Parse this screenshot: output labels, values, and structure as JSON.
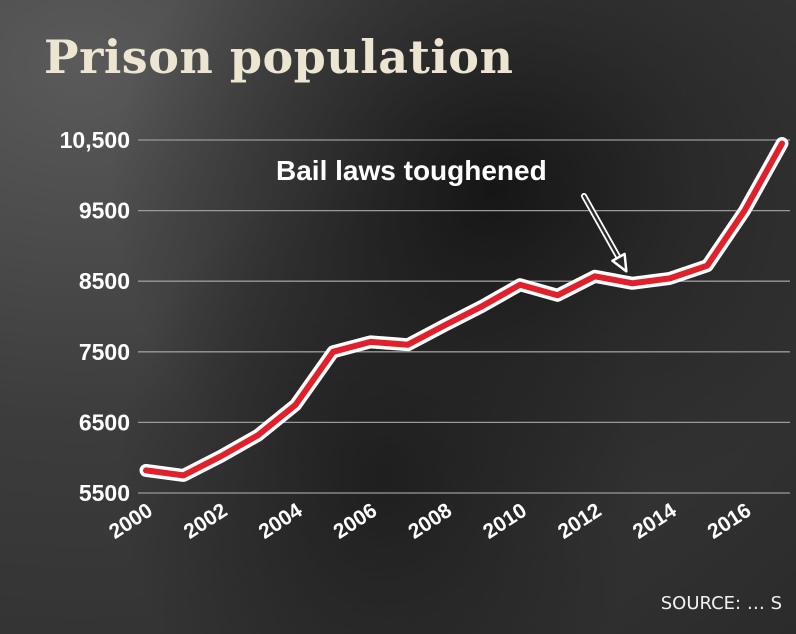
{
  "chart_data": {
    "type": "line",
    "title": "Prison population",
    "x": [
      2000,
      2001,
      2002,
      2003,
      2004,
      2005,
      2006,
      2007,
      2008,
      2009,
      2010,
      2011,
      2012,
      2013,
      2014,
      2015,
      2016,
      2017
    ],
    "series": [
      {
        "values": [
          5820,
          5750,
          6020,
          6320,
          6750,
          7500,
          7640,
          7600,
          7880,
          8150,
          8450,
          8300,
          8570,
          8470,
          8540,
          8720,
          9500,
          10450
        ]
      }
    ],
    "x_tick_labels": [
      "2000",
      "2002",
      "2004",
      "2006",
      "2008",
      "2010",
      "2012",
      "2014",
      "2016"
    ],
    "y_tick_labels": [
      "5500",
      "6500",
      "7500",
      "8500",
      "9500",
      "10,500"
    ],
    "y_ticks": [
      5500,
      6500,
      7500,
      8500,
      9500,
      10500
    ],
    "ylim": [
      5500,
      10500
    ],
    "xlim": [
      2000,
      2017
    ],
    "grid": true,
    "line_color": "#e0202a",
    "annotation": {
      "text": "Bail laws toughened",
      "x": 2013,
      "y": 8470
    },
    "source": "SOURCE: … S"
  },
  "colors": {
    "grid": "#9a9a9a",
    "title": "#ece5d2",
    "line": "#e0202a",
    "outline": "#ffffff"
  }
}
